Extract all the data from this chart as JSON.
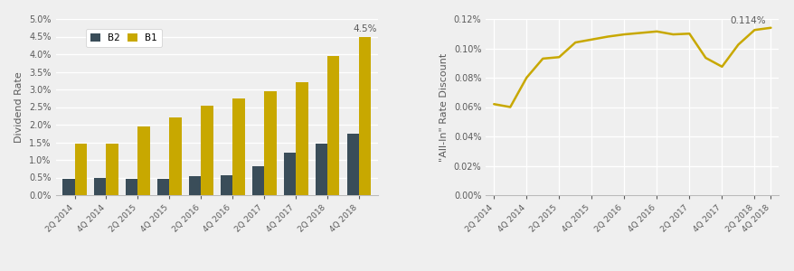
{
  "bar_categories": [
    "2Q 2014",
    "4Q 2014",
    "2Q 2015",
    "4Q 2015",
    "2Q 2016",
    "4Q 2016",
    "2Q 2017",
    "4Q 2017",
    "2Q 2018",
    "4Q 2018"
  ],
  "b2_values": [
    0.0045,
    0.0048,
    0.0047,
    0.0047,
    0.0055,
    0.0057,
    0.0082,
    0.012,
    0.0145,
    0.0175
  ],
  "b1_values": [
    0.0145,
    0.0145,
    0.0195,
    0.022,
    0.0255,
    0.0275,
    0.0295,
    0.032,
    0.0395,
    0.045
  ],
  "b2_color": "#3a4d59",
  "b1_color": "#c8a800",
  "bar_ylim": [
    0,
    0.05
  ],
  "bar_yticks": [
    0.0,
    0.005,
    0.01,
    0.015,
    0.02,
    0.025,
    0.03,
    0.035,
    0.04,
    0.045,
    0.05
  ],
  "bar_ylabel": "Dividend Rate",
  "bar_annotation": "4.5%",
  "line_categories": [
    "2Q 2014",
    "4Q 2014",
    "2Q 2015",
    "4Q 2015",
    "2Q 2016",
    "4Q 2016",
    "2Q 2017",
    "4Q 2017",
    "2Q 2018",
    "4Q 2018"
  ],
  "line_x": [
    0,
    1,
    2,
    3,
    4,
    5,
    6,
    7,
    8,
    9,
    10,
    11,
    12,
    13,
    14,
    15,
    16,
    17
  ],
  "line_values": [
    0.00062,
    0.0006,
    0.0008,
    0.00093,
    0.00094,
    0.00104,
    0.00106,
    0.00108,
    0.001095,
    0.001105,
    0.001115,
    0.001095,
    0.0011,
    0.000935,
    0.000875,
    0.001025,
    0.001125,
    0.00114
  ],
  "line_xlabels_pos": [
    0,
    2,
    4,
    6,
    8,
    10,
    12,
    14,
    16,
    17
  ],
  "line_color": "#c8a800",
  "line_ylim": [
    0,
    0.0012
  ],
  "line_yticks": [
    0.0,
    0.0002,
    0.0004,
    0.0006,
    0.0008,
    0.001,
    0.0012
  ],
  "line_ylabel": "\"All-In\" Rate Discount",
  "line_annotation": "0.114%",
  "bg_color": "#efefef",
  "grid_color": "#ffffff",
  "text_color": "#5a5a5a",
  "spine_color": "#bbbbbb"
}
